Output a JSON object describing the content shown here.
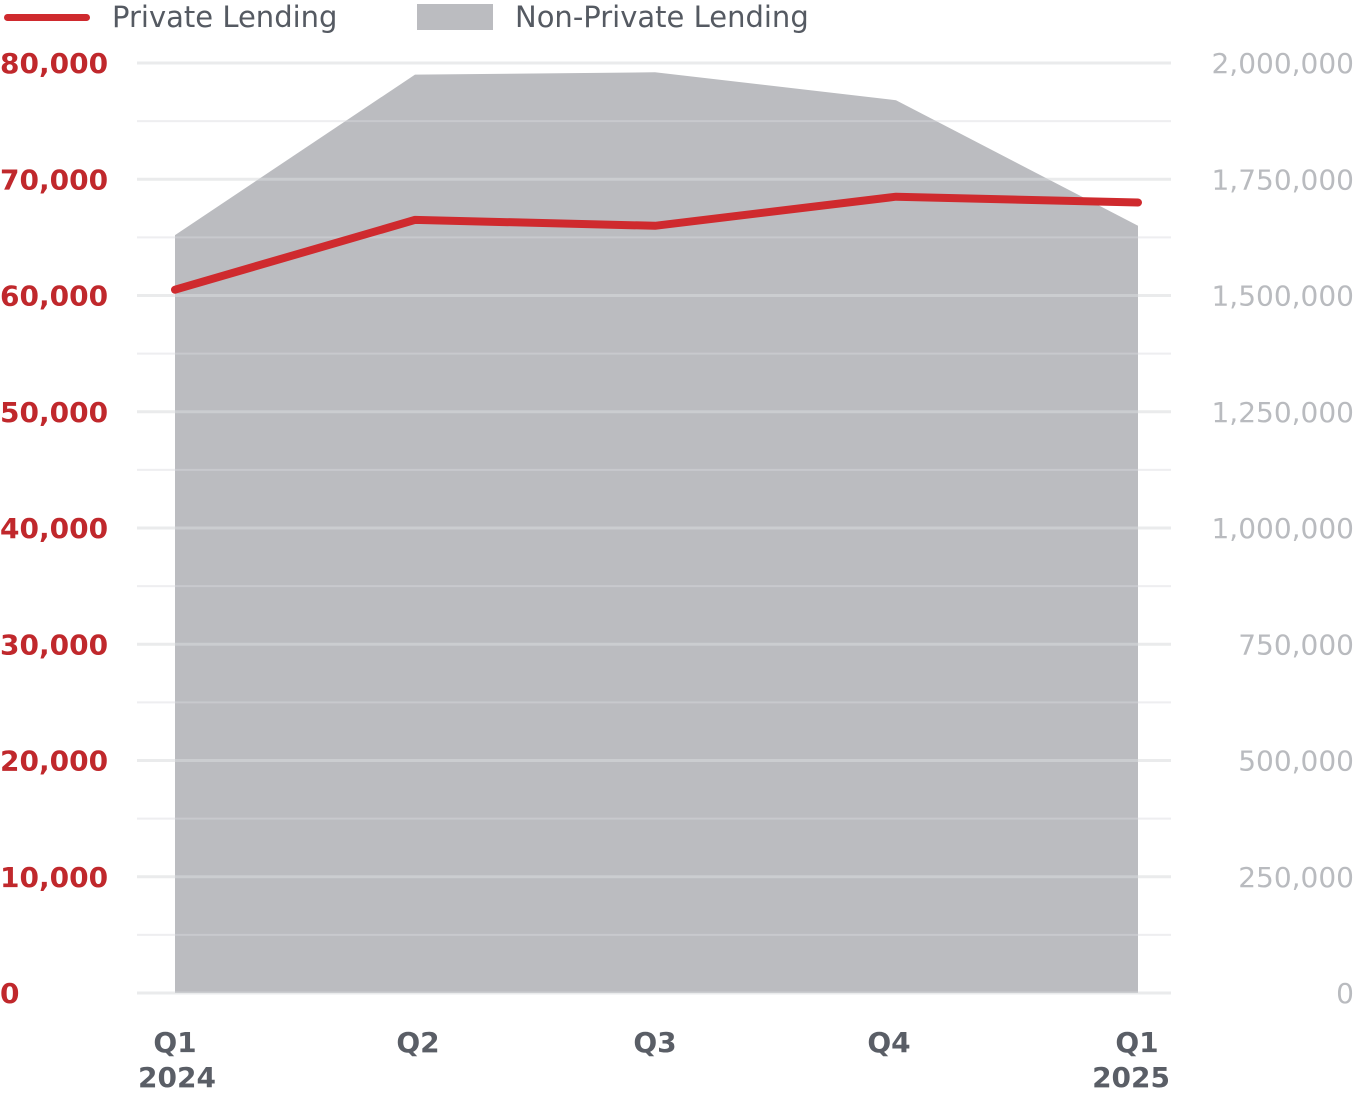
{
  "colors": {
    "private": "#cf2a2e",
    "non_private": "#bbbcc0",
    "left_axis": "#c0282c",
    "right_axis": "#b9bbbf",
    "grid": "#d9dadd",
    "x_axis": "#5a5e66"
  },
  "legend": {
    "items": [
      {
        "label": "Private Lending",
        "symbol": "line"
      },
      {
        "label": "Non-Private Lending",
        "symbol": "area"
      }
    ]
  },
  "chart_data": {
    "type": "line",
    "categories": [
      {
        "quarter": "Q1",
        "year": "2024"
      },
      {
        "quarter": "Q2",
        "year": ""
      },
      {
        "quarter": "Q3",
        "year": ""
      },
      {
        "quarter": "Q4",
        "year": ""
      },
      {
        "quarter": "Q1",
        "year": "2025"
      }
    ],
    "series": [
      {
        "name": "Private Lending",
        "type": "line",
        "axis": "left",
        "values": [
          60500,
          66500,
          66000,
          68500,
          68000
        ]
      },
      {
        "name": "Non-Private Lending",
        "type": "area",
        "axis": "right",
        "values": [
          1630000,
          1975000,
          1980000,
          1920000,
          1650000
        ]
      }
    ],
    "y_left": {
      "min": 0,
      "max": 80000,
      "step": 10000,
      "tick_labels": [
        "0",
        "10,000",
        "20,000",
        "30,000",
        "40,000",
        "50,000",
        "60,000",
        "70,000",
        "80,000"
      ]
    },
    "y_right": {
      "min": 0,
      "max": 2000000,
      "step": 250000,
      "tick_labels": [
        "0",
        "250,000",
        "500,000",
        "750,000",
        "1,000,000",
        "1,250,000",
        "1,500,000",
        "1,750,000",
        "2,000,000"
      ]
    },
    "grid": true,
    "legend_position": "top-left"
  }
}
